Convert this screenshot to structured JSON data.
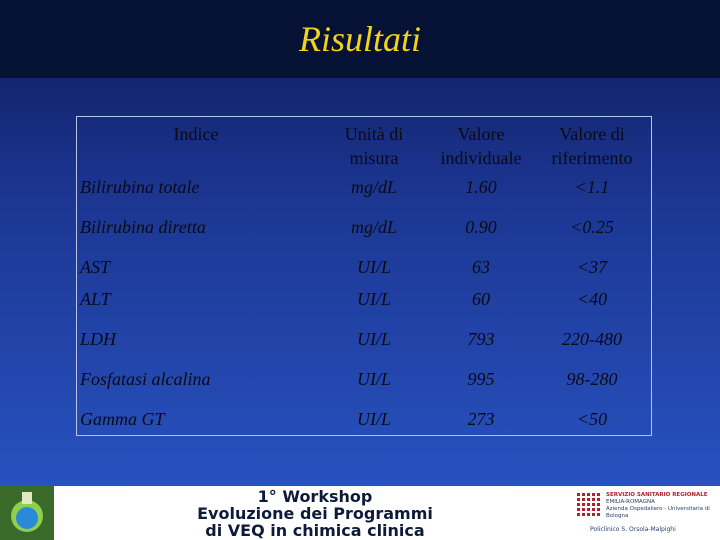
{
  "title": "Risultati",
  "table": {
    "headers": {
      "index": "Indice",
      "unit_line1": "Unità di",
      "unit_line2": "misura",
      "value_line1": "Valore",
      "value_line2": "individuale",
      "ref_line1": "Valore di",
      "ref_line2": "riferimento"
    },
    "rows": [
      {
        "name": "Bilirubina totale",
        "unit": "mg/dL",
        "value": "1.60",
        "ref": "<1.1"
      },
      {
        "name": "Bilirubina diretta",
        "unit": "mg/dL",
        "value": "0.90",
        "ref": "<0.25"
      },
      {
        "name": "AST",
        "unit": "UI/L",
        "value": "63",
        "ref": "<37"
      },
      {
        "name": "ALT",
        "unit": "UI/L",
        "value": "60",
        "ref": "<40"
      },
      {
        "name": "LDH",
        "unit": "UI/L",
        "value": "793",
        "ref": "220-480"
      },
      {
        "name": "Fosfatasi alcalina",
        "unit": "UI/L",
        "value": "995",
        "ref": "98-280"
      },
      {
        "name": "Gamma GT",
        "unit": "UI/L",
        "value": "273",
        "ref": "<50"
      }
    ]
  },
  "footer": {
    "line1": "1° Workshop",
    "line2": "Evoluzione dei Programmi",
    "line3": "di VEQ in chimica clinica",
    "region_line1": "SERVIZIO SANITARIO REGIONALE",
    "region_line2": "EMILIA-ROMAGNA",
    "region_line3": "Azienda Ospedaliero - Universitaria di Bologna",
    "policlinico": "Policlinico S. Orsola-Malpighi",
    "brand_colors": {
      "red": "#b0202a",
      "navy": "#283c6e"
    }
  }
}
